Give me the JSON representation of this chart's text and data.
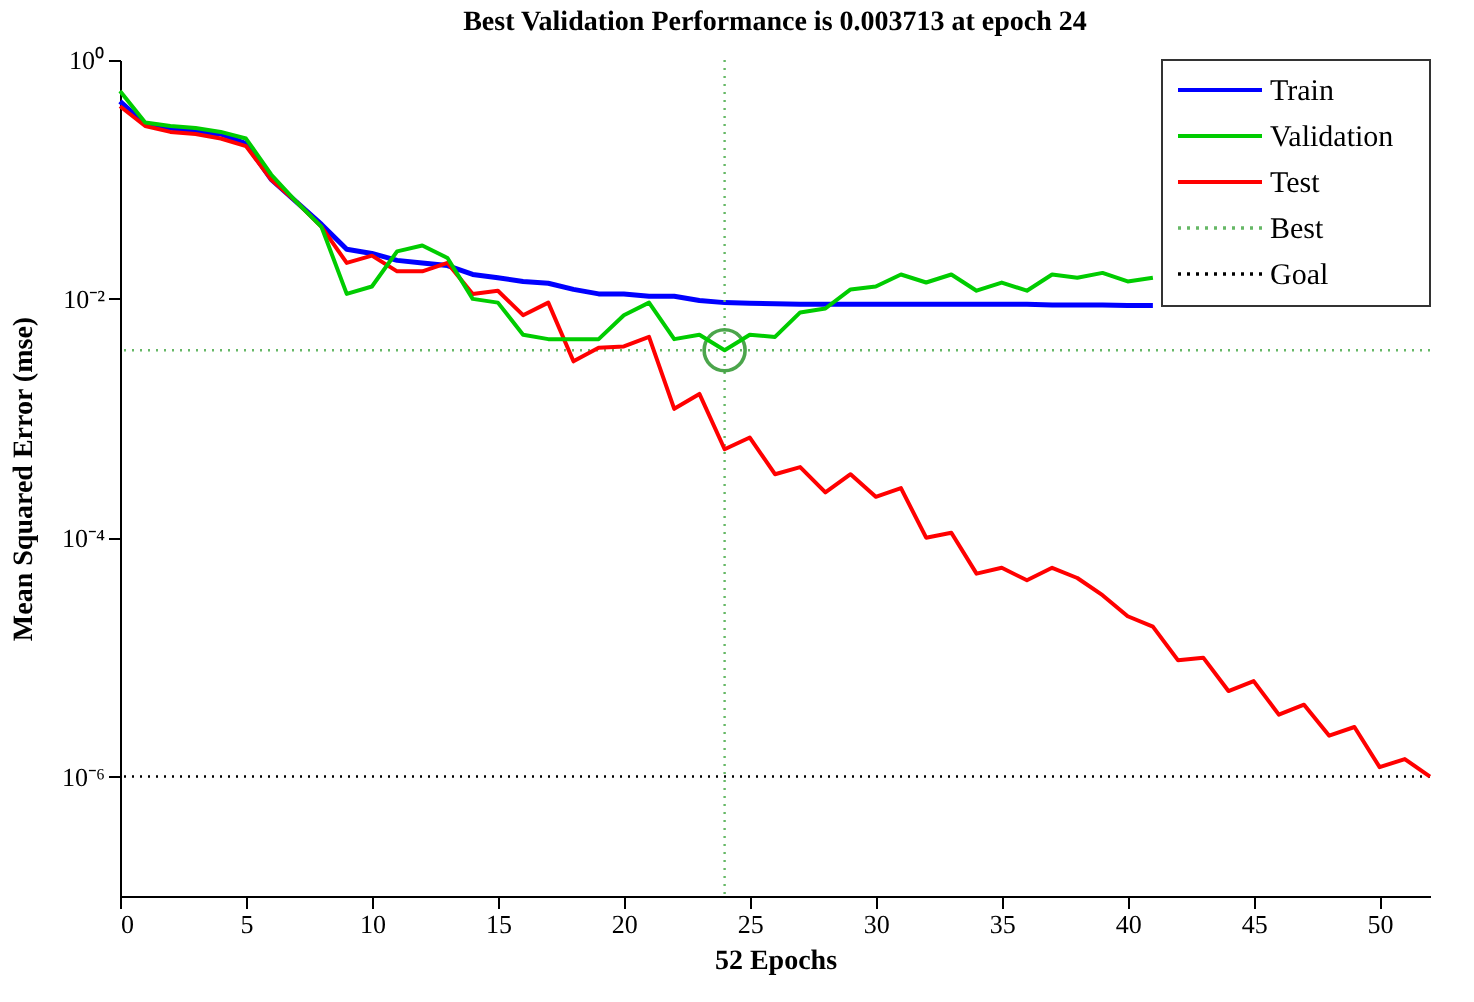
{
  "chart_data": {
    "type": "line",
    "title": "Best Validation Performance is 0.003713 at epoch 24",
    "xlabel": "52 Epochs",
    "ylabel": "Mean Squared Error  (mse)",
    "x": [
      0,
      1,
      2,
      3,
      4,
      5,
      6,
      7,
      8,
      9,
      10,
      11,
      12,
      13,
      14,
      15,
      16,
      17,
      18,
      19,
      20,
      21,
      22,
      23,
      24,
      25,
      26,
      27,
      28,
      29,
      30,
      31,
      32,
      33,
      34,
      35,
      36,
      37,
      38,
      39,
      40,
      41,
      42,
      43,
      44,
      45,
      46,
      47,
      48,
      49,
      50,
      51,
      52
    ],
    "series": [
      {
        "name": "Train",
        "color": "#0000ff",
        "values": [
          0.45,
          0.29,
          0.27,
          0.25,
          0.24,
          0.2,
          0.1,
          0.065,
          0.042,
          0.026,
          0.024,
          0.021,
          0.02,
          0.019,
          0.016,
          0.015,
          0.014,
          0.0135,
          0.012,
          0.011,
          0.011,
          0.0105,
          0.0105,
          0.0097,
          0.0093,
          0.0092,
          0.0091,
          0.009,
          0.009,
          0.009,
          0.009,
          0.009,
          0.009,
          0.009,
          0.009,
          0.009,
          0.009,
          0.0089,
          0.0089,
          0.0089,
          0.0088,
          0.0088,
          null,
          null,
          null,
          null,
          null,
          null,
          null,
          null,
          null,
          null,
          null
        ]
      },
      {
        "name": "Validation",
        "color": "#00cc00",
        "values": [
          0.55,
          0.3,
          0.28,
          0.27,
          0.25,
          0.22,
          0.11,
          0.065,
          0.04,
          0.011,
          0.0127,
          0.025,
          0.028,
          0.022,
          0.01,
          0.0093,
          0.005,
          0.0046,
          0.0046,
          0.0046,
          0.0073,
          0.0093,
          0.0046,
          0.005,
          0.003713,
          0.005,
          0.0048,
          0.0077,
          0.0083,
          0.012,
          0.0127,
          0.016,
          0.0137,
          0.016,
          0.0117,
          0.0137,
          0.0117,
          0.016,
          0.015,
          0.0165,
          0.014,
          0.015,
          null,
          null,
          null,
          null,
          null,
          null,
          null,
          null,
          null,
          null,
          null
        ]
      },
      {
        "name": "Test",
        "color": "#ff0000",
        "values": [
          0.41,
          0.28,
          0.25,
          0.24,
          0.22,
          0.19,
          0.1,
          0.065,
          0.04,
          0.02,
          0.023,
          0.017,
          0.017,
          0.02,
          0.011,
          0.0117,
          0.0073,
          0.0093,
          0.003,
          0.0039,
          0.004,
          0.0048,
          0.0012,
          0.0016,
          0.00055,
          0.00069,
          0.00034,
          0.00039,
          0.00024,
          0.00034,
          0.00022,
          0.00026,
          0.0001,
          0.00011,
          5e-05,
          5.6e-05,
          4.4e-05,
          5.6e-05,
          4.6e-05,
          3.3e-05,
          2.2e-05,
          1.8e-05,
          9.4e-06,
          9.9e-06,
          5.2e-06,
          6.3e-06,
          3.3e-06,
          4e-06,
          2.2e-06,
          2.6e-06,
          1.2e-06,
          1.4e-06,
          1e-06
        ]
      },
      {
        "type": "scatter",
        "marker": "circle",
        "color": "#008000",
        "x": [
          24
        ],
        "values": [
          0.003713
        ]
      }
    ],
    "ref_lines": [
      {
        "axis": "y",
        "value": 0.003713,
        "label": "Best",
        "color": "#66b866",
        "line_style": "dotted"
      },
      {
        "axis": "x",
        "value": 24,
        "color": "#66b866",
        "line_style": "dotted"
      },
      {
        "axis": "y",
        "value": 1e-06,
        "label": "Goal",
        "color": "#000000",
        "line_style": "dotted"
      }
    ],
    "xlim": [
      0,
      52
    ],
    "xticks": [
      0,
      5,
      10,
      15,
      20,
      25,
      30,
      35,
      40,
      45,
      50
    ],
    "log": true,
    "ylim": [
      1e-07,
      1
    ],
    "yticks": [
      {
        "value": 1,
        "label": "10⁰"
      },
      {
        "value": 0.01,
        "label": "10⁻²"
      },
      {
        "value": 0.0001,
        "label": "10⁻⁴"
      },
      {
        "value": 1e-06,
        "label": "10⁻⁶"
      }
    ],
    "grid": false,
    "legend": "top right"
  }
}
